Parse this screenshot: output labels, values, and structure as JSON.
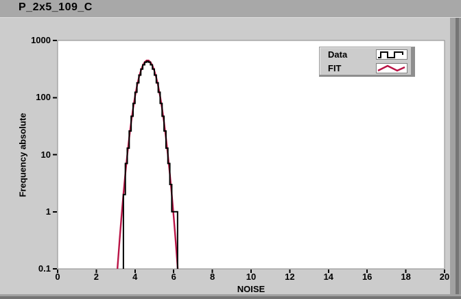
{
  "window": {
    "title": "P_2x5_109_C"
  },
  "colors": {
    "titlebar_bg": "#a8a8a8",
    "panel_bg": "#cccccc",
    "plot_bg": "#ffffff",
    "plot_border": "#8a8a8a",
    "axis_text": "#000000",
    "data_color": "#000000",
    "fit_color": "#b91446"
  },
  "legend": {
    "items": [
      {
        "label": "Data",
        "icon": "square-wave-icon",
        "color": "#000000"
      },
      {
        "label": "FIT",
        "icon": "zigzag-wave-icon",
        "color": "#b91446"
      }
    ]
  },
  "chart_data": {
    "type": "histogram",
    "title": "P_2x5_109_C",
    "xlabel": "NOISE",
    "ylabel": "Frequency absolute",
    "x_ticks": [
      0,
      2,
      4,
      6,
      8,
      10,
      12,
      14,
      16,
      18,
      20
    ],
    "y_ticks": [
      1000,
      100,
      10,
      1,
      0.1
    ],
    "xlim": [
      0,
      20
    ],
    "ylim": [
      0.1,
      1000
    ],
    "y_scale": "log",
    "grid": false,
    "legend_position": "top-right",
    "series": [
      {
        "name": "Data",
        "style": "step-histogram",
        "color": "#000000",
        "bin_start": 3.4,
        "bin_width": 0.1,
        "counts": [
          2,
          7,
          13,
          26,
          47,
          79,
          124,
          181,
          247,
          315,
          374,
          415,
          430,
          415,
          374,
          315,
          247,
          181,
          124,
          79,
          47,
          26,
          13,
          7,
          3,
          1,
          1,
          1
        ]
      },
      {
        "name": "FIT",
        "style": "gaussian-curve",
        "color": "#b91446",
        "amplitude": 450,
        "mean": 4.65,
        "sigma": 0.38,
        "x_range": [
          3.0,
          6.3
        ],
        "sample_step": 0.1
      }
    ]
  }
}
